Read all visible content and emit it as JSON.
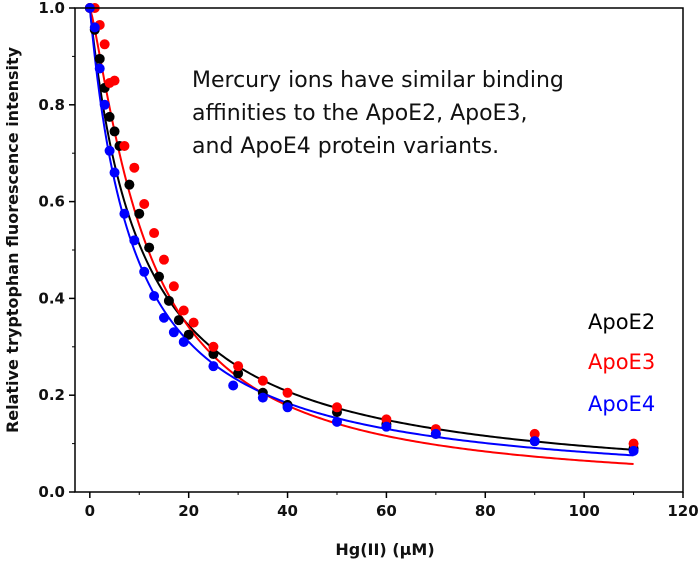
{
  "chart_data": {
    "type": "scatter",
    "title": "",
    "xlabel": "Hg(II) (µM)",
    "ylabel": "Relative tryptophan fluorescence intensity",
    "xlim": [
      -3,
      120
    ],
    "ylim": [
      0,
      1.0
    ],
    "xticks": [
      0,
      20,
      40,
      60,
      80,
      100,
      120
    ],
    "yticks": [
      0.0,
      0.2,
      0.4,
      0.6,
      0.8,
      1.0
    ],
    "ytick_labels": [
      "0.0",
      "0.2",
      "0.4",
      "0.6",
      "0.8",
      "1.0"
    ],
    "grid": false,
    "annotation": [
      "Mercury ions have similar binding",
      "affinities to the ApoE2, ApoE3,",
      "and ApoE4 protein variants."
    ],
    "legend_position": "right",
    "series": [
      {
        "name": "ApoE2",
        "color": "#000000",
        "fit_kd": 10.5,
        "points": [
          [
            0,
            1.0
          ],
          [
            1,
            0.955
          ],
          [
            2,
            0.895
          ],
          [
            3,
            0.835
          ],
          [
            4,
            0.775
          ],
          [
            5,
            0.745
          ],
          [
            6,
            0.715
          ],
          [
            8,
            0.635
          ],
          [
            10,
            0.575
          ],
          [
            12,
            0.505
          ],
          [
            14,
            0.445
          ],
          [
            16,
            0.395
          ],
          [
            18,
            0.355
          ],
          [
            20,
            0.325
          ],
          [
            25,
            0.285
          ],
          [
            30,
            0.245
          ],
          [
            35,
            0.205
          ],
          [
            40,
            0.18
          ],
          [
            50,
            0.165
          ],
          [
            60,
            0.14
          ],
          [
            70,
            0.12
          ],
          [
            90,
            0.105
          ],
          [
            110,
            0.09
          ]
        ]
      },
      {
        "name": "ApoE3",
        "color": "#ff0000",
        "fit_kd": 11.8,
        "fit_n": 1.25,
        "points": [
          [
            0,
            1.0
          ],
          [
            1,
            1.0
          ],
          [
            2,
            0.965
          ],
          [
            3,
            0.925
          ],
          [
            4,
            0.845
          ],
          [
            5,
            0.85
          ],
          [
            7,
            0.715
          ],
          [
            9,
            0.67
          ],
          [
            11,
            0.595
          ],
          [
            13,
            0.535
          ],
          [
            15,
            0.48
          ],
          [
            17,
            0.425
          ],
          [
            19,
            0.375
          ],
          [
            21,
            0.35
          ],
          [
            25,
            0.3
          ],
          [
            30,
            0.26
          ],
          [
            35,
            0.23
          ],
          [
            40,
            0.205
          ],
          [
            50,
            0.175
          ],
          [
            60,
            0.15
          ],
          [
            70,
            0.13
          ],
          [
            90,
            0.12
          ],
          [
            110,
            0.1
          ]
        ]
      },
      {
        "name": "ApoE4",
        "color": "#0000ff",
        "fit_kd": 9.0,
        "points": [
          [
            0,
            1.0
          ],
          [
            1,
            0.96
          ],
          [
            2,
            0.875
          ],
          [
            3,
            0.8
          ],
          [
            4,
            0.705
          ],
          [
            5,
            0.66
          ],
          [
            7,
            0.575
          ],
          [
            9,
            0.52
          ],
          [
            11,
            0.455
          ],
          [
            13,
            0.405
          ],
          [
            15,
            0.36
          ],
          [
            17,
            0.33
          ],
          [
            19,
            0.31
          ],
          [
            25,
            0.26
          ],
          [
            29,
            0.22
          ],
          [
            35,
            0.195
          ],
          [
            40,
            0.175
          ],
          [
            50,
            0.145
          ],
          [
            60,
            0.135
          ],
          [
            70,
            0.12
          ],
          [
            90,
            0.105
          ],
          [
            110,
            0.085
          ]
        ]
      }
    ]
  }
}
